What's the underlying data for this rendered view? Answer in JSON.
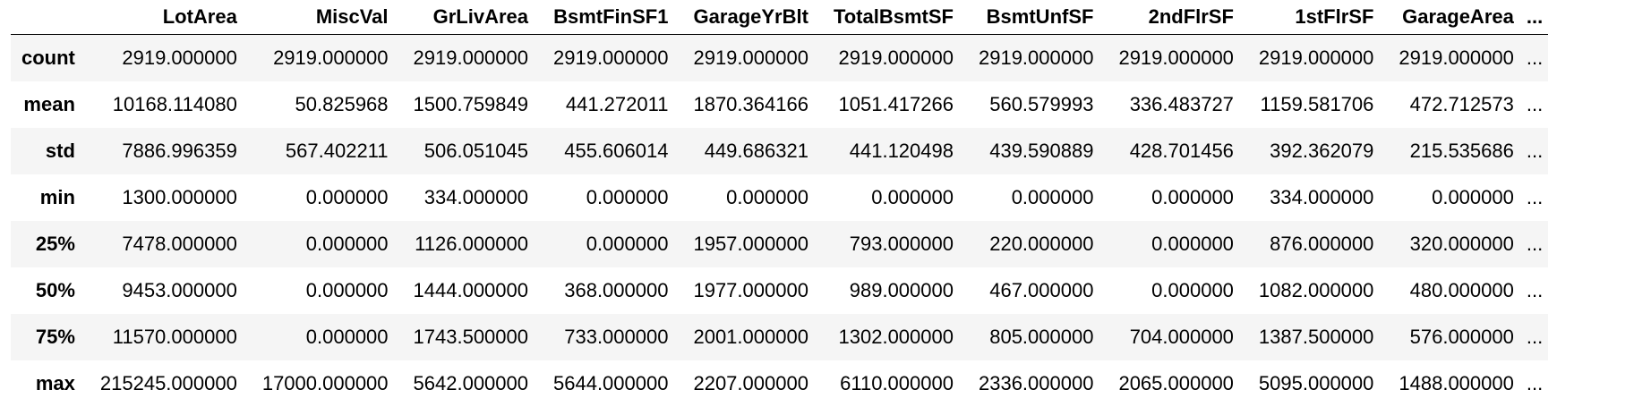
{
  "table": {
    "columns": [
      "LotArea",
      "MiscVal",
      "GrLivArea",
      "BsmtFinSF1",
      "GarageYrBlt",
      "TotalBsmtSF",
      "BsmtUnfSF",
      "2ndFlrSF",
      "1stFlrSF",
      "GarageArea"
    ],
    "ellipsis": "...",
    "rows": [
      {
        "label": "count",
        "values": [
          "2919.000000",
          "2919.000000",
          "2919.000000",
          "2919.000000",
          "2919.000000",
          "2919.000000",
          "2919.000000",
          "2919.000000",
          "2919.000000",
          "2919.000000"
        ]
      },
      {
        "label": "mean",
        "values": [
          "10168.114080",
          "50.825968",
          "1500.759849",
          "441.272011",
          "1870.364166",
          "1051.417266",
          "560.579993",
          "336.483727",
          "1159.581706",
          "472.712573"
        ]
      },
      {
        "label": "std",
        "values": [
          "7886.996359",
          "567.402211",
          "506.051045",
          "455.606014",
          "449.686321",
          "441.120498",
          "439.590889",
          "428.701456",
          "392.362079",
          "215.535686"
        ]
      },
      {
        "label": "min",
        "values": [
          "1300.000000",
          "0.000000",
          "334.000000",
          "0.000000",
          "0.000000",
          "0.000000",
          "0.000000",
          "0.000000",
          "334.000000",
          "0.000000"
        ]
      },
      {
        "label": "25%",
        "values": [
          "7478.000000",
          "0.000000",
          "1126.000000",
          "0.000000",
          "1957.000000",
          "793.000000",
          "220.000000",
          "0.000000",
          "876.000000",
          "320.000000"
        ]
      },
      {
        "label": "50%",
        "values": [
          "9453.000000",
          "0.000000",
          "1444.000000",
          "368.000000",
          "1977.000000",
          "989.000000",
          "467.000000",
          "0.000000",
          "1082.000000",
          "480.000000"
        ]
      },
      {
        "label": "75%",
        "values": [
          "11570.000000",
          "0.000000",
          "1743.500000",
          "733.000000",
          "2001.000000",
          "1302.000000",
          "805.000000",
          "704.000000",
          "1387.500000",
          "576.000000"
        ]
      },
      {
        "label": "max",
        "values": [
          "215245.000000",
          "17000.000000",
          "5642.000000",
          "5644.000000",
          "2207.000000",
          "6110.000000",
          "2336.000000",
          "2065.000000",
          "5095.000000",
          "1488.000000"
        ]
      }
    ]
  }
}
